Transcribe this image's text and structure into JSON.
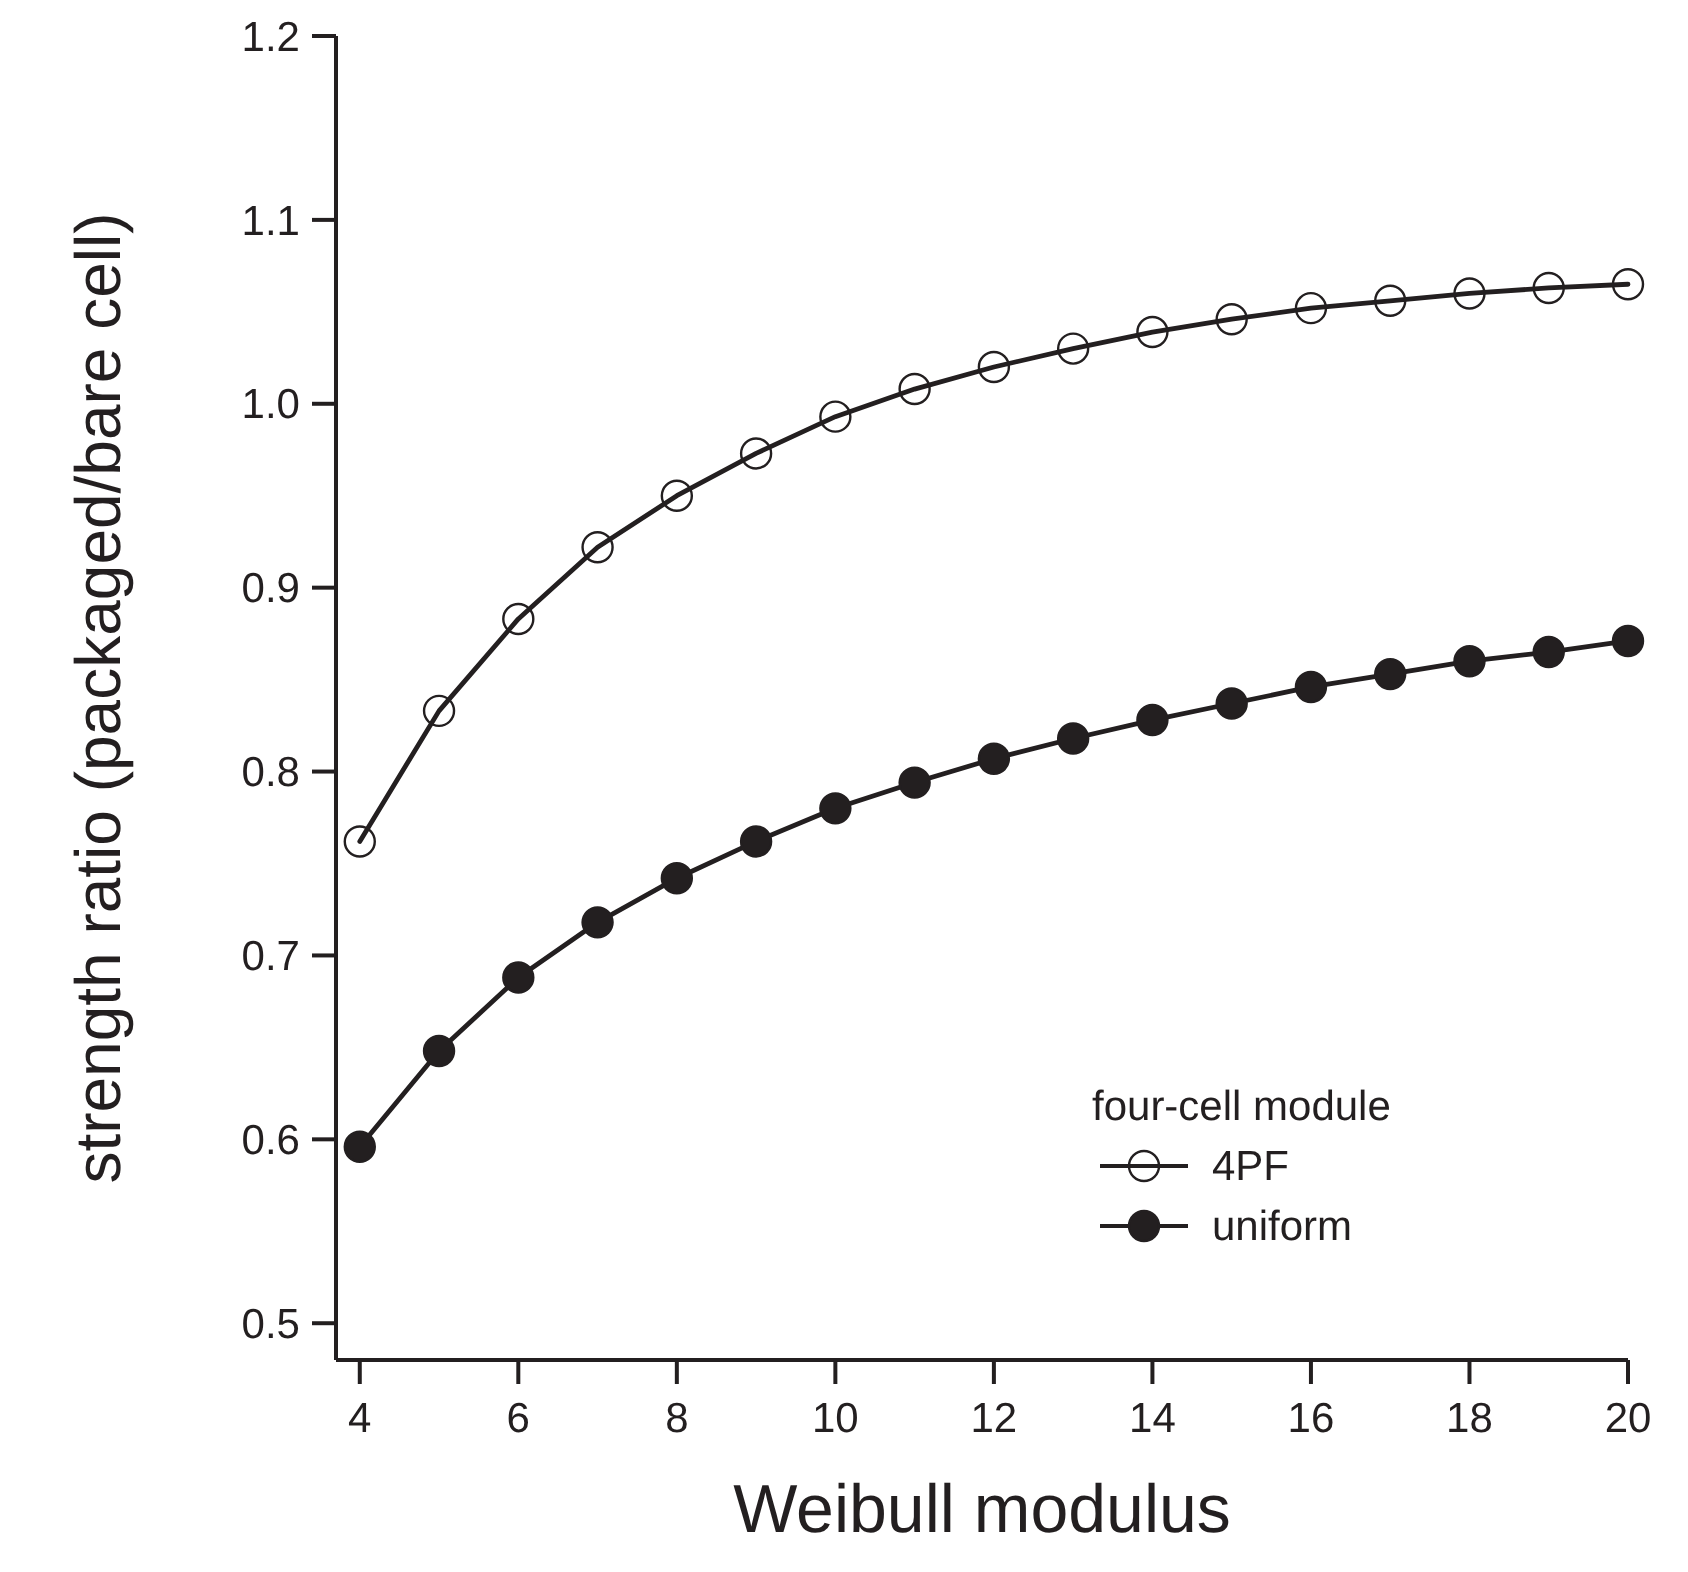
{
  "chart_data": {
    "type": "line",
    "xlabel": "Weibull modulus",
    "ylabel": "strength ratio (packaged/bare cell)",
    "legend_title": "four-cell module",
    "x": [
      4,
      5,
      6,
      7,
      8,
      9,
      10,
      11,
      12,
      13,
      14,
      15,
      16,
      17,
      18,
      19,
      20
    ],
    "series": [
      {
        "name": "4PF",
        "color": "#231f20",
        "marker": "circle",
        "values": [
          0.762,
          0.833,
          0.883,
          0.922,
          0.95,
          0.973,
          0.993,
          1.008,
          1.02,
          1.03,
          1.039,
          1.046,
          1.052,
          1.056,
          1.06,
          1.063,
          1.065
        ]
      },
      {
        "name": "uniform",
        "color": "#231f20",
        "marker": "circle",
        "values": [
          0.596,
          0.648,
          0.688,
          0.718,
          0.742,
          0.762,
          0.78,
          0.794,
          0.807,
          0.818,
          0.828,
          0.837,
          0.846,
          0.853,
          0.86,
          0.865,
          0.871
        ]
      }
    ],
    "xlim": [
      3.7,
      20
    ],
    "xticks": [
      4,
      6,
      8,
      10,
      12,
      14,
      16,
      18,
      20
    ],
    "ylim": [
      0.48,
      1.2
    ],
    "yticks": [
      0.5,
      0.6,
      0.7,
      0.8,
      0.9,
      {
        "value": 1.0,
        "label": "1.0"
      },
      1.1,
      1.2
    ],
    "grid": false,
    "legend": "bottom right",
    "line_style": "solid"
  }
}
